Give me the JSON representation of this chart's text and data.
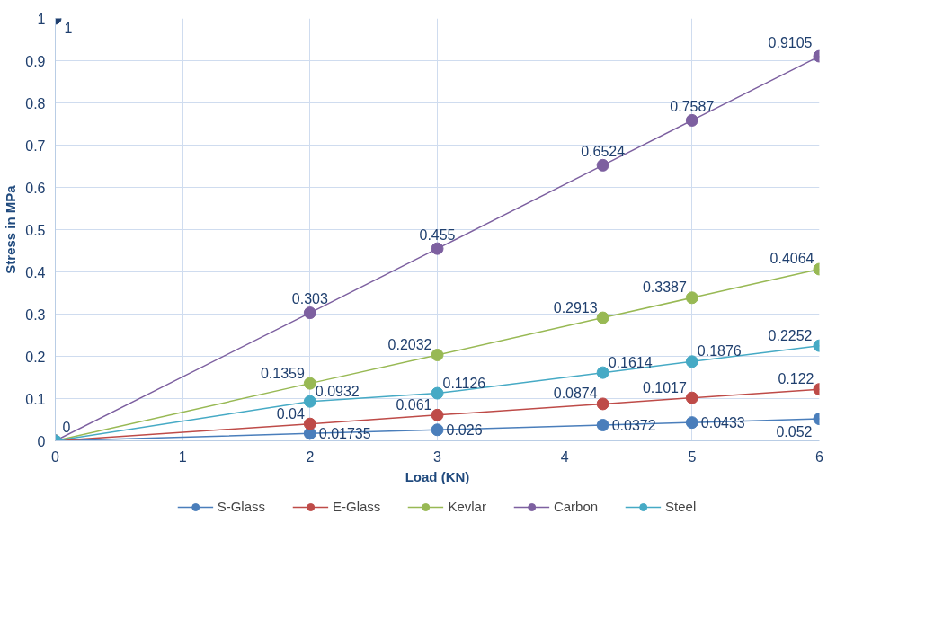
{
  "chart_data": {
    "type": "line",
    "xlabel": "Load (KN)",
    "ylabel": "Stress in MPa",
    "xlim": [
      0,
      6
    ],
    "ylim": [
      0,
      1
    ],
    "xticks": [
      0,
      1,
      2,
      3,
      4,
      5,
      6
    ],
    "yticks": [
      0,
      0.1,
      0.2,
      0.3,
      0.4,
      0.5,
      0.6,
      0.7,
      0.8,
      0.9,
      1
    ],
    "grid": true,
    "legend": "bottom",
    "marker": "circle",
    "line_style": "solid",
    "series": [
      {
        "name": "S-Glass",
        "color": "#4a7ebb",
        "x": [
          0,
          2,
          3,
          4.3,
          5,
          6
        ],
        "values": [
          0,
          0.01735,
          0.026,
          0.0372,
          0.0433,
          0.052
        ],
        "value_labels": [
          null,
          "0.01735",
          "0.026",
          "0.0372",
          "0.0433",
          "0.052"
        ]
      },
      {
        "name": "E-Glass",
        "color": "#be4b48",
        "x": [
          0,
          2,
          3,
          4.3,
          5,
          6
        ],
        "values": [
          0,
          0.04,
          0.061,
          0.0874,
          0.1017,
          0.122
        ],
        "value_labels": [
          null,
          "0.04",
          "0.061",
          "0.0874",
          "0.1017",
          "0.122"
        ]
      },
      {
        "name": "Kevlar",
        "color": "#98b954",
        "x": [
          0,
          2,
          3,
          4.3,
          5,
          6
        ],
        "values": [
          0,
          0.1359,
          0.2032,
          0.2913,
          0.3387,
          0.4064
        ],
        "value_labels": [
          null,
          "0.1359",
          "0.2032",
          "0.2913",
          "0.3387",
          "0.4064"
        ]
      },
      {
        "name": "Carbon",
        "color": "#7d60a0",
        "x": [
          0,
          2,
          3,
          4.3,
          5,
          6
        ],
        "values": [
          0,
          0.303,
          0.455,
          0.6524,
          0.7587,
          0.9105
        ],
        "value_labels": [
          "0",
          "0.303",
          "0.455",
          "0.6524",
          "0.7587",
          "0.9105"
        ]
      },
      {
        "name": "Steel",
        "color": "#46aac5",
        "x": [
          0,
          2,
          3,
          4.3,
          5,
          6
        ],
        "values": [
          0,
          0.0932,
          0.1126,
          0.1614,
          0.1876,
          0.2252
        ],
        "value_labels": [
          null,
          "0.0932",
          "0.1126",
          "0.1614",
          "0.1876",
          "0.2252"
        ]
      },
      {
        "type": "scatter",
        "color": "#1f3f6e",
        "x": [
          0
        ],
        "values": [
          1
        ],
        "value_labels": [
          "1"
        ]
      }
    ]
  }
}
